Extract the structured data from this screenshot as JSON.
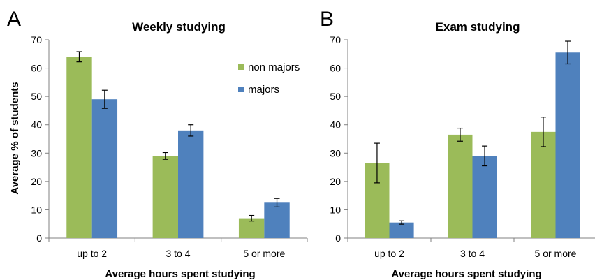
{
  "chart_data": [
    {
      "type": "bar",
      "panel_label": "A",
      "title": "Weekly studying",
      "xlabel": "Average hours spent studying",
      "ylabel": "Average % of students",
      "ylim": [
        0,
        70
      ],
      "yticks": [
        "0",
        "10",
        "20",
        "30",
        "40",
        "50",
        "60",
        "70"
      ],
      "categories": [
        "up to 2",
        "3 to 4",
        "5 or more"
      ],
      "series": [
        {
          "name": "non majors",
          "color": "#9bbb59",
          "values": [
            64,
            29,
            7
          ],
          "errors": [
            1.8,
            1.2,
            1.0
          ]
        },
        {
          "name": "majors",
          "color": "#4f81bd",
          "values": [
            49,
            38,
            12.5
          ],
          "errors": [
            3.2,
            2.0,
            1.5
          ]
        }
      ],
      "legend": "top-right",
      "grid": false
    },
    {
      "type": "bar",
      "panel_label": "B",
      "title": "Exam studying",
      "xlabel": "Average hours spent studying",
      "ylabel": "",
      "ylim": [
        0,
        70
      ],
      "yticks": [
        "0",
        "10",
        "20",
        "30",
        "40",
        "50",
        "60",
        "70"
      ],
      "categories": [
        "up to 2",
        "3 to 4",
        "5 or more"
      ],
      "series": [
        {
          "name": "non majors",
          "color": "#9bbb59",
          "values": [
            26.5,
            36.5,
            37.5
          ],
          "errors": [
            7.0,
            2.3,
            5.2
          ]
        },
        {
          "name": "majors",
          "color": "#4f81bd",
          "values": [
            5.5,
            29,
            65.5
          ],
          "errors": [
            0.6,
            3.5,
            4.0
          ]
        }
      ],
      "legend": "none",
      "grid": false
    }
  ]
}
